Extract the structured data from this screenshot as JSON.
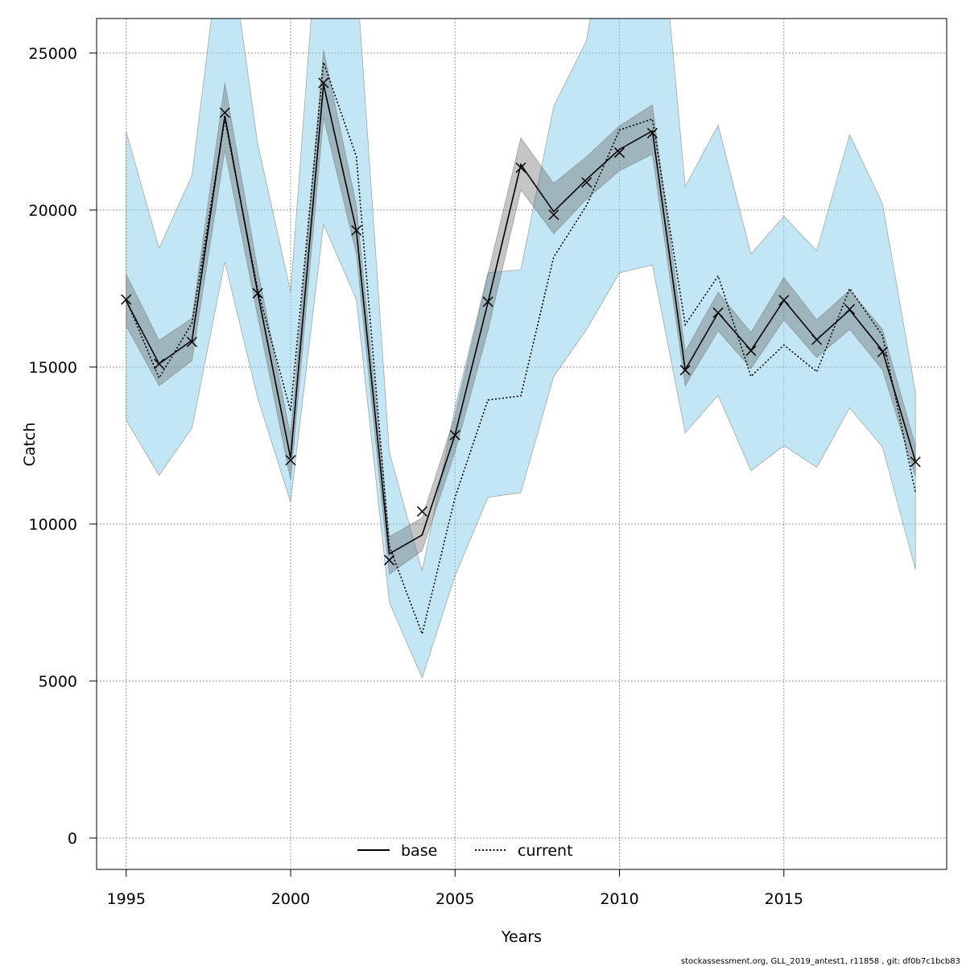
{
  "chart_data": {
    "type": "line",
    "xlabel": "Years",
    "ylabel": "Catch",
    "xlim": [
      1994.1,
      2019.95
    ],
    "ylim": [
      -1000,
      26100
    ],
    "xticks": [
      "1995",
      "2000",
      "2005",
      "2010",
      "2015"
    ],
    "yticks": [
      "0",
      "5000",
      "10000",
      "15000",
      "20000",
      "25000"
    ],
    "grid": true,
    "legend_position": "bottom-center",
    "x": [
      1995,
      1996,
      1997,
      1998,
      1999,
      2000,
      2001,
      2002,
      2003,
      2004,
      2005,
      2006,
      2007,
      2008,
      2009,
      2010,
      2011,
      2012,
      2013,
      2014,
      2015,
      2016,
      2017,
      2018,
      2019
    ],
    "observed": {
      "marker": "x",
      "values": [
        17150,
        15100,
        15800,
        23100,
        17350,
        12030,
        24050,
        19350,
        8850,
        10400,
        12830,
        17080,
        21350,
        19850,
        20880,
        21830,
        22450,
        14900,
        16730,
        15520,
        17130,
        15870,
        16840,
        15480,
        11980
      ]
    },
    "series": [
      {
        "name": "base",
        "color": "#000000",
        "line": "solid",
        "band_color": "rgba(90,90,90,0.35)",
        "values": [
          17100,
          15100,
          15850,
          23000,
          17350,
          12100,
          24000,
          19350,
          9050,
          9650,
          12850,
          17050,
          21450,
          19950,
          20980,
          21930,
          22520,
          14910,
          16730,
          15530,
          17130,
          15870,
          16820,
          15520,
          12000
        ],
        "lower": [
          16300,
          14400,
          15200,
          21900,
          16600,
          11400,
          22950,
          18600,
          8400,
          9150,
          12300,
          16150,
          20650,
          19250,
          20350,
          21250,
          21780,
          14400,
          16150,
          14950,
          16500,
          15300,
          16200,
          14900,
          11500
        ],
        "upper": [
          17950,
          15850,
          16550,
          24050,
          18100,
          12800,
          25100,
          20150,
          9600,
          10200,
          13450,
          17950,
          22300,
          20850,
          21700,
          22680,
          23350,
          15500,
          17380,
          16100,
          17850,
          16500,
          17450,
          16200,
          12500
        ]
      },
      {
        "name": "current",
        "color": "#000000",
        "line": "dotted",
        "band_color": "rgba(135,206,235,0.5)",
        "values": [
          17150,
          14650,
          16400,
          22900,
          17450,
          13600,
          24700,
          21700,
          9300,
          6500,
          10850,
          13950,
          14080,
          18500,
          20150,
          22550,
          22900,
          16350,
          17900,
          14700,
          15700,
          14850,
          17500,
          16000,
          11000
        ],
        "lower": [
          13300,
          11550,
          13050,
          18350,
          14000,
          10700,
          19550,
          17150,
          7500,
          5100,
          8350,
          10850,
          11000,
          14700,
          16200,
          18000,
          18250,
          12900,
          14100,
          11700,
          12500,
          11800,
          13700,
          12450,
          8550
        ],
        "upper": [
          22500,
          18780,
          21100,
          29600,
          22100,
          17400,
          31400,
          27600,
          12300,
          8500,
          13700,
          18000,
          18100,
          23300,
          25400,
          32000,
          32200,
          20750,
          22700,
          18600,
          19800,
          18700,
          22400,
          20200,
          14200
        ]
      }
    ]
  },
  "footer": "stockassessment.org, GLL_2019_antest1, r11858 , git: df0b7c1bcb83"
}
